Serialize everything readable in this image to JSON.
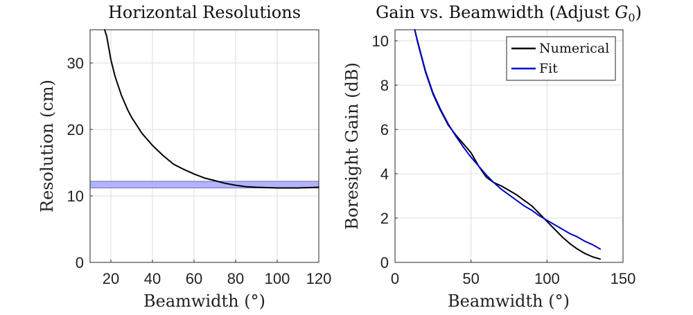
{
  "chart_data": [
    {
      "type": "line",
      "title": "Horizontal Resolutions",
      "xlabel": "Beamwidth (°)",
      "ylabel": "Resolution (cm)",
      "xlim": [
        10,
        120
      ],
      "ylim": [
        0,
        35
      ],
      "xticks": [
        20,
        40,
        60,
        80,
        100,
        120
      ],
      "yticks": [
        0,
        10,
        20,
        30
      ],
      "grid": true,
      "band": {
        "y_low": 11.2,
        "y_high": 12.2,
        "color": "#b3b3f7",
        "edge": "#6b6bd6"
      },
      "series": [
        {
          "color": "#000000",
          "x": [
            17,
            18,
            20,
            22,
            25,
            28,
            30,
            35,
            40,
            45,
            50,
            55,
            60,
            65,
            70,
            75,
            80,
            85,
            90,
            95,
            100,
            105,
            110,
            115,
            120
          ],
          "y": [
            35,
            34,
            30.5,
            28.0,
            25.2,
            23.0,
            21.8,
            19.4,
            17.6,
            16.1,
            14.8,
            14.0,
            13.3,
            12.7,
            12.3,
            11.9,
            11.6,
            11.4,
            11.3,
            11.25,
            11.2,
            11.2,
            11.2,
            11.25,
            11.3
          ]
        }
      ]
    },
    {
      "type": "line",
      "title": "Gain vs. Beamwidth (Adjust G0)",
      "title_main": "Gain vs. Beamwidth (Adjust ",
      "title_sym": "G",
      "title_sub": "0",
      "title_end": ")",
      "xlabel": "Beamwidth (°)",
      "ylabel": "Boresight Gain (dB)",
      "xlim": [
        0,
        150
      ],
      "ylim": [
        0,
        10.5
      ],
      "xticks": [
        0,
        50,
        100,
        150
      ],
      "yticks": [
        0,
        2,
        4,
        6,
        8,
        10
      ],
      "grid": true,
      "legend": "top-right",
      "series": [
        {
          "name": "Numerical",
          "color": "#000000",
          "x": [
            13,
            15,
            20,
            25,
            30,
            35,
            40,
            45,
            50,
            55,
            60,
            65,
            70,
            75,
            80,
            85,
            90,
            95,
            100,
            105,
            110,
            115,
            120,
            125,
            130,
            135
          ],
          "y": [
            10.5,
            9.9,
            8.6,
            7.6,
            6.85,
            6.2,
            5.75,
            5.35,
            4.95,
            4.35,
            3.85,
            3.6,
            3.45,
            3.25,
            3.05,
            2.8,
            2.55,
            2.2,
            1.85,
            1.5,
            1.15,
            0.85,
            0.6,
            0.4,
            0.25,
            0.15
          ]
        },
        {
          "name": "Fit",
          "color": "#0000d0",
          "x": [
            13,
            15,
            20,
            25,
            30,
            35,
            40,
            45,
            50,
            55,
            60,
            65,
            70,
            75,
            80,
            85,
            90,
            95,
            100,
            105,
            110,
            115,
            120,
            125,
            130,
            135
          ],
          "y": [
            10.5,
            9.95,
            8.65,
            7.65,
            6.9,
            6.25,
            5.7,
            5.2,
            4.75,
            4.35,
            3.95,
            3.6,
            3.3,
            3.05,
            2.8,
            2.55,
            2.35,
            2.1,
            1.9,
            1.7,
            1.5,
            1.3,
            1.15,
            0.95,
            0.8,
            0.6
          ]
        }
      ]
    }
  ]
}
